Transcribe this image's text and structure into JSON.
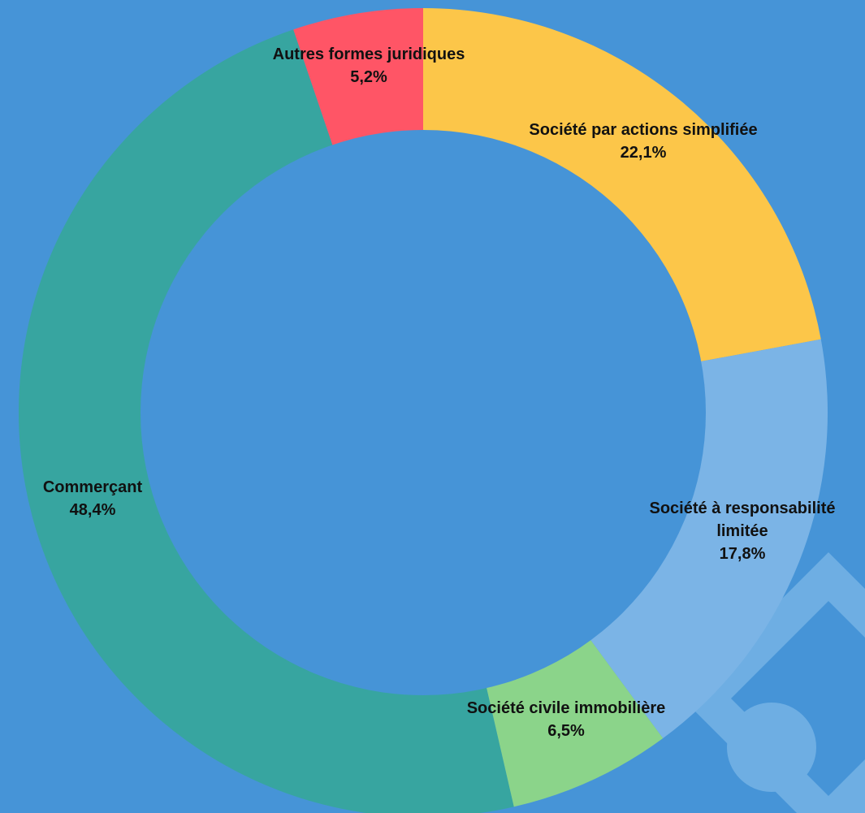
{
  "background_color": "#4694D7",
  "chart_data": {
    "type": "pie",
    "variant": "donut",
    "title": "",
    "start_angle_degrees": 0,
    "direction": "clockwise",
    "slices": [
      {
        "label_lines": [
          "Société par actions simplifiée"
        ],
        "value": 22.1,
        "value_label": "22,1%",
        "color": "#FCC649"
      },
      {
        "label_lines": [
          "Société à responsabilité",
          "limitée"
        ],
        "value": 17.8,
        "value_label": "17,8%",
        "color": "#7BB4E6"
      },
      {
        "label_lines": [
          "Société civile immobilière"
        ],
        "value": 6.5,
        "value_label": "6,5%",
        "color": "#8BD48A"
      },
      {
        "label_lines": [
          "Commerçant"
        ],
        "value": 48.4,
        "value_label": "48,4%",
        "color": "#37A5A0"
      },
      {
        "label_lines": [
          "Autres formes juridiques"
        ],
        "value": 5.2,
        "value_label": "5,2%",
        "color": "#FF5566"
      }
    ]
  },
  "decorations": {
    "shape_color": "#6EAEE3"
  }
}
